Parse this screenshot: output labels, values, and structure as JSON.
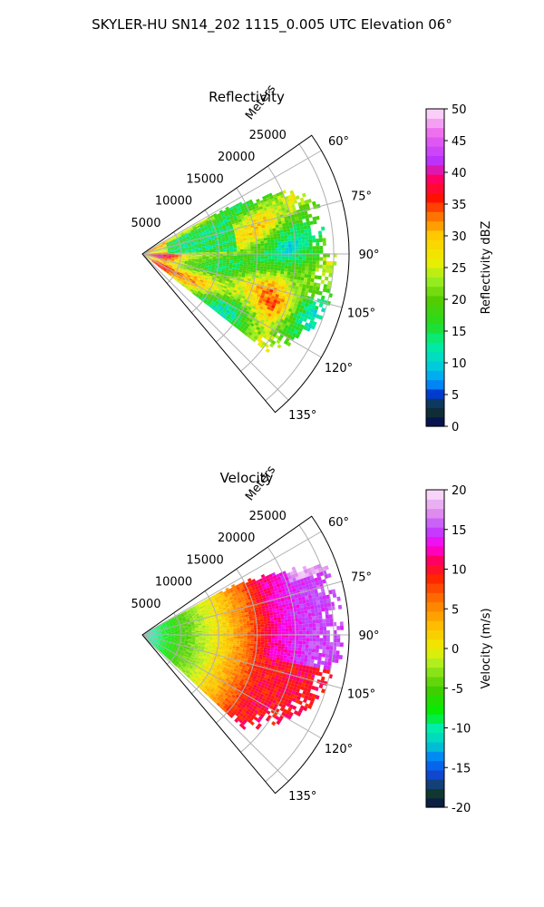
{
  "figure": {
    "title": "SKYLER-HU  SN14_202  1115_0.005 UTC Elevation 06°"
  },
  "chart_data": [
    {
      "type": "heatmap",
      "projection": "polar-sector",
      "title": "Reflectivity",
      "radial_label": "Meters",
      "r_ticks": [
        "5000",
        "10000",
        "15000",
        "20000",
        "25000"
      ],
      "r_tick_values": [
        5000,
        10000,
        15000,
        20000,
        25000
      ],
      "rlim": [
        0,
        27000
      ],
      "theta_ticks": [
        "60°",
        "75°",
        "90°",
        "105°",
        "120°",
        "135°"
      ],
      "theta_tick_values": [
        60,
        75,
        90,
        105,
        120,
        135
      ],
      "theta_range_deg": [
        55,
        140
      ],
      "grid": true,
      "colorbar": {
        "label": "Reflectivity dBZ",
        "range": [
          0,
          50
        ],
        "ticks": [
          "0",
          "5",
          "10",
          "15",
          "20",
          "25",
          "30",
          "35",
          "40",
          "45",
          "50"
        ],
        "tick_values": [
          0,
          5,
          10,
          15,
          20,
          25,
          30,
          35,
          40,
          45,
          50
        ]
      },
      "field_summary": {
        "dominant_range": [
          15,
          28
        ],
        "cores": [
          {
            "azimuth_deg": 112,
            "range_m": 18500,
            "value": 36
          },
          {
            "azimuth_deg": 72,
            "range_m": 16000,
            "value": 30
          },
          {
            "azimuth_deg": 100,
            "range_m": 2500,
            "value": 35
          },
          {
            "azimuth_deg": 112,
            "range_m": 8000,
            "value": 30
          }
        ],
        "low_zone": {
          "azimuth_deg": [
            65,
            88
          ],
          "range_m": [
            3000,
            12000
          ],
          "value": 15
        }
      }
    },
    {
      "type": "heatmap",
      "projection": "polar-sector",
      "title": "Velocity",
      "radial_label": "Meters",
      "r_ticks": [
        "5000",
        "10000",
        "15000",
        "20000",
        "25000"
      ],
      "r_tick_values": [
        5000,
        10000,
        15000,
        20000,
        25000
      ],
      "rlim": [
        0,
        27000
      ],
      "theta_ticks": [
        "60°",
        "75°",
        "90°",
        "105°",
        "120°",
        "135°"
      ],
      "theta_tick_values": [
        60,
        75,
        90,
        105,
        120,
        135
      ],
      "theta_range_deg": [
        55,
        140
      ],
      "grid": true,
      "colorbar": {
        "label": "Velocity (m/s)",
        "range": [
          -20,
          20
        ],
        "ticks": [
          "-20",
          "-15",
          "-10",
          "-5",
          "0",
          "5",
          "10",
          "15",
          "20"
        ],
        "tick_values": [
          -20,
          -15,
          -10,
          -5,
          0,
          5,
          10,
          15,
          20
        ]
      },
      "field_summary": {
        "gradient_by_range": [
          {
            "range_m": 1500,
            "value": -10
          },
          {
            "range_m": 6000,
            "value": -4
          },
          {
            "range_m": 10000,
            "value": 1
          },
          {
            "range_m": 14000,
            "value": 7
          },
          {
            "range_m": 17000,
            "value": 12
          },
          {
            "range_m": 22000,
            "value": 15
          }
        ]
      }
    }
  ]
}
